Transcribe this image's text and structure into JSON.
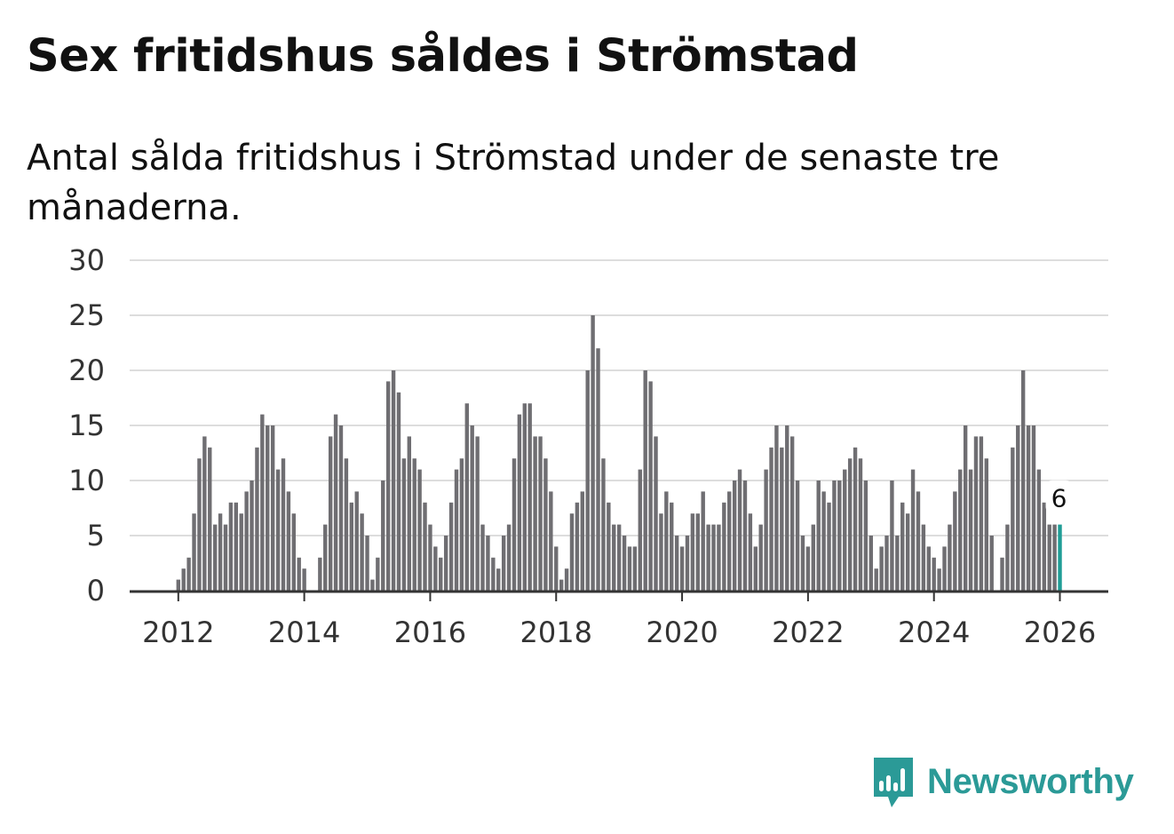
{
  "title": "Sex fritidshus såldes i Strömstad",
  "subtitle": "Antal sålda fritidshus i Strömstad under de senaste tre månaderna.",
  "brand": {
    "name": "Newsworthy",
    "color": "#2b9a97",
    "icon": "bar-chart-speech-bubble-icon"
  },
  "colors": {
    "bar": "#6f6e72",
    "highlight": "#1f9d96",
    "grid": "#dddddd",
    "axis": "#333333"
  },
  "chart_data": {
    "type": "bar",
    "title": "Sex fritidshus såldes i Strömstad",
    "xlabel": "",
    "ylabel": "",
    "ylim": [
      0,
      30
    ],
    "yticks": [
      "0",
      "5",
      "10",
      "15",
      "20",
      "25",
      "30"
    ],
    "xticks": [
      "2012",
      "2014",
      "2016",
      "2018",
      "2020",
      "2022",
      "2024",
      "2026"
    ],
    "start": "2011-01",
    "end": "2026-01",
    "grid": true,
    "highlight_last": true,
    "last_value_label": "6",
    "values": [
      0,
      0,
      0,
      0,
      0,
      0,
      0,
      0,
      0,
      0,
      0,
      0,
      1,
      2,
      3,
      7,
      12,
      14,
      13,
      6,
      7,
      6,
      8,
      8,
      7,
      9,
      10,
      13,
      16,
      15,
      15,
      11,
      12,
      9,
      7,
      3,
      2,
      0,
      0,
      3,
      6,
      14,
      16,
      15,
      12,
      8,
      9,
      7,
      5,
      1,
      3,
      10,
      19,
      20,
      18,
      12,
      14,
      12,
      11,
      8,
      6,
      4,
      3,
      5,
      8,
      11,
      12,
      17,
      15,
      14,
      6,
      5,
      3,
      2,
      5,
      6,
      12,
      16,
      17,
      17,
      14,
      14,
      12,
      9,
      4,
      1,
      2,
      7,
      8,
      9,
      20,
      25,
      22,
      12,
      8,
      6,
      6,
      5,
      4,
      4,
      11,
      20,
      19,
      14,
      7,
      9,
      8,
      5,
      4,
      5,
      7,
      7,
      9,
      6,
      6,
      6,
      8,
      9,
      10,
      11,
      10,
      7,
      4,
      6,
      11,
      13,
      15,
      13,
      15,
      14,
      10,
      5,
      4,
      6,
      10,
      9,
      8,
      10,
      10,
      11,
      12,
      13,
      12,
      10,
      5,
      2,
      4,
      5,
      10,
      5,
      8,
      7,
      11,
      9,
      6,
      4,
      3,
      2,
      4,
      6,
      9,
      11,
      15,
      11,
      14,
      14,
      12,
      5,
      0,
      3,
      6,
      13,
      15,
      20,
      15,
      15,
      11,
      8,
      6,
      6,
      6
    ]
  }
}
